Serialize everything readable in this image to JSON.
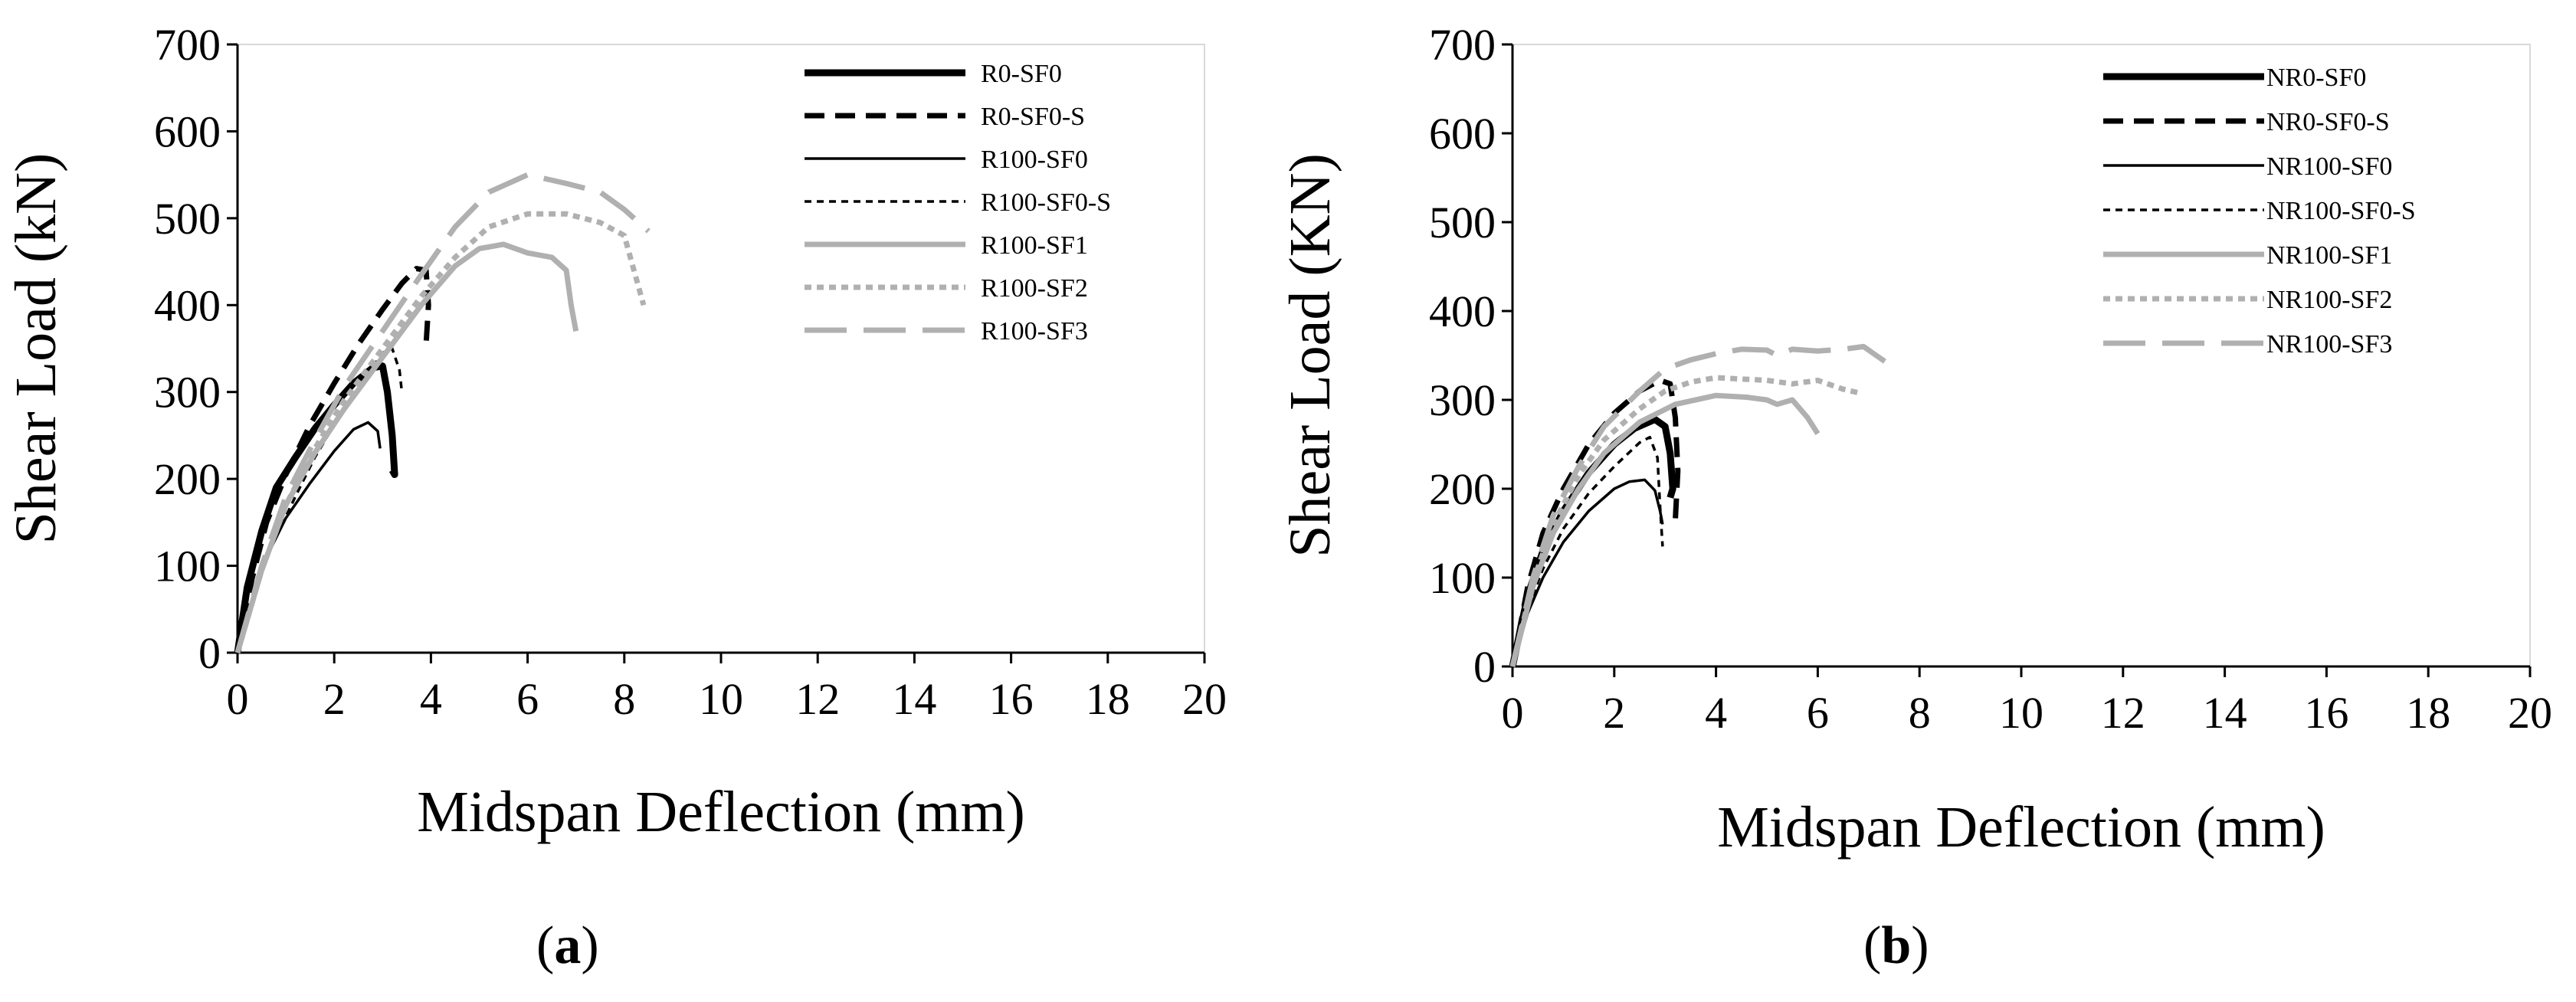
{
  "chart_data": [
    {
      "type": "line",
      "panel_label": "a",
      "xlabel": "Midspan Deflection (mm)",
      "ylabel": "Shear Load (kN)",
      "xlim": [
        0,
        20
      ],
      "ylim": [
        0,
        700
      ],
      "xticks": [
        0,
        2,
        4,
        6,
        8,
        10,
        12,
        14,
        16,
        18,
        20
      ],
      "yticks": [
        0,
        100,
        200,
        300,
        400,
        500,
        600,
        700
      ],
      "legend_position": "top-right",
      "grid": false,
      "series": [
        {
          "name": "R0-SF0",
          "color": "#000000",
          "dash": "solid",
          "weight": "thick",
          "x": [
            0,
            0.2,
            0.5,
            0.8,
            1.2,
            1.6,
            2.0,
            2.4,
            2.8,
            3.0,
            3.1,
            3.2,
            3.25,
            3.2
          ],
          "y": [
            0,
            75,
            140,
            190,
            225,
            258,
            285,
            310,
            328,
            330,
            300,
            250,
            205,
            210
          ]
        },
        {
          "name": "R0-SF0-S",
          "color": "#000000",
          "dash": "dash",
          "weight": "thick",
          "x": [
            0,
            0.3,
            0.6,
            1.0,
            1.5,
            2.0,
            2.5,
            3.0,
            3.4,
            3.7,
            3.9,
            3.95,
            3.9
          ],
          "y": [
            0,
            85,
            150,
            205,
            262,
            310,
            355,
            395,
            425,
            442,
            440,
            400,
            355
          ]
        },
        {
          "name": "R100-SF0",
          "color": "#000000",
          "dash": "solid",
          "weight": "thin",
          "x": [
            0,
            0.3,
            0.6,
            1.0,
            1.5,
            2.0,
            2.4,
            2.7,
            2.9,
            2.95
          ],
          "y": [
            0,
            60,
            110,
            155,
            195,
            232,
            257,
            265,
            255,
            235
          ]
        },
        {
          "name": "R100-SF0-S",
          "color": "#000000",
          "dash": "shortdash",
          "weight": "thin",
          "x": [
            0,
            0.3,
            0.6,
            0.9,
            1.2,
            1.6,
            2.0,
            2.5,
            3.0,
            3.2,
            3.35,
            3.4
          ],
          "y": [
            0,
            60,
            110,
            145,
            180,
            225,
            262,
            305,
            345,
            350,
            325,
            300
          ]
        },
        {
          "name": "R100-SF1",
          "color": "#b0b0b0",
          "dash": "solid",
          "weight": "thick",
          "x": [
            0,
            0.5,
            1.0,
            1.6,
            2.2,
            3.0,
            3.8,
            4.5,
            5.0,
            5.5,
            6.0,
            6.5,
            6.8,
            6.9,
            7.0
          ],
          "y": [
            0,
            95,
            170,
            230,
            280,
            340,
            400,
            445,
            465,
            470,
            460,
            455,
            440,
            400,
            370
          ]
        },
        {
          "name": "R100-SF2",
          "color": "#b0b0b0",
          "dash": "shortdash",
          "weight": "thick",
          "x": [
            0,
            0.5,
            1.0,
            1.6,
            2.2,
            3.0,
            3.8,
            4.5,
            5.2,
            6.0,
            6.8,
            7.5,
            8.0,
            8.2,
            8.4
          ],
          "y": [
            0,
            95,
            170,
            235,
            290,
            350,
            410,
            455,
            490,
            505,
            505,
            495,
            480,
            440,
            400
          ]
        },
        {
          "name": "R100-SF3",
          "color": "#b0b0b0",
          "dash": "longdash",
          "weight": "thick",
          "x": [
            0,
            0.5,
            1.0,
            1.6,
            2.2,
            3.0,
            3.8,
            4.5,
            5.2,
            6.0,
            6.8,
            7.5,
            8.0,
            8.5
          ],
          "y": [
            0,
            100,
            180,
            245,
            305,
            370,
            435,
            490,
            530,
            550,
            540,
            530,
            510,
            485
          ]
        }
      ]
    },
    {
      "type": "line",
      "panel_label": "b",
      "xlabel": "Midspan Deflection (mm)",
      "ylabel": "Shear Load (KN)",
      "xlim": [
        0,
        20
      ],
      "ylim": [
        0,
        700
      ],
      "xticks": [
        0,
        2,
        4,
        6,
        8,
        10,
        12,
        14,
        16,
        18,
        20
      ],
      "yticks": [
        0,
        100,
        200,
        300,
        400,
        500,
        600,
        700
      ],
      "legend_position": "top-right",
      "grid": false,
      "series": [
        {
          "name": "NR0-SF0",
          "color": "#000000",
          "dash": "solid",
          "weight": "thick",
          "x": [
            0,
            0.3,
            0.6,
            1.0,
            1.5,
            2.0,
            2.4,
            2.8,
            3.0,
            3.1,
            3.15,
            3.1
          ],
          "y": [
            0,
            80,
            130,
            175,
            218,
            250,
            268,
            278,
            270,
            240,
            200,
            190
          ]
        },
        {
          "name": "NR0-SF0-S",
          "color": "#000000",
          "dash": "dash",
          "weight": "thick",
          "x": [
            0,
            0.3,
            0.6,
            1.0,
            1.5,
            2.0,
            2.5,
            2.9,
            3.1,
            3.2,
            3.25,
            3.2
          ],
          "y": [
            0,
            90,
            150,
            200,
            250,
            285,
            310,
            322,
            318,
            280,
            220,
            165
          ]
        },
        {
          "name": "NR100-SF0",
          "color": "#000000",
          "dash": "solid",
          "weight": "thin",
          "x": [
            0,
            0.3,
            0.6,
            1.0,
            1.5,
            2.0,
            2.3,
            2.6,
            2.8,
            2.9,
            2.95
          ],
          "y": [
            0,
            60,
            100,
            140,
            175,
            200,
            208,
            210,
            198,
            175,
            160
          ]
        },
        {
          "name": "NR100-SF0-S",
          "color": "#000000",
          "dash": "shortdash",
          "weight": "thin",
          "x": [
            0,
            0.3,
            0.6,
            1.0,
            1.5,
            2.0,
            2.5,
            2.7,
            2.85,
            2.9,
            2.95
          ],
          "y": [
            0,
            65,
            110,
            155,
            195,
            225,
            252,
            258,
            235,
            180,
            135
          ]
        },
        {
          "name": "NR100-SF1",
          "color": "#b0b0b0",
          "dash": "solid",
          "weight": "thick",
          "x": [
            0,
            0.4,
            0.8,
            1.3,
            1.8,
            2.5,
            3.2,
            4.0,
            4.6,
            5.0,
            5.2,
            5.5,
            5.8,
            6.0
          ],
          "y": [
            0,
            90,
            150,
            200,
            240,
            275,
            295,
            305,
            303,
            300,
            295,
            300,
            280,
            262
          ]
        },
        {
          "name": "NR100-SF2",
          "color": "#b0b0b0",
          "dash": "shortdash",
          "weight": "thick",
          "x": [
            0,
            0.4,
            0.8,
            1.3,
            1.8,
            2.5,
            3.0,
            3.5,
            4.0,
            5.0,
            5.5,
            6.0,
            6.5,
            6.8
          ],
          "y": [
            0,
            95,
            160,
            215,
            255,
            290,
            310,
            320,
            325,
            322,
            318,
            322,
            312,
            308
          ]
        },
        {
          "name": "NR100-SF3",
          "color": "#b0b0b0",
          "dash": "longdash",
          "weight": "thick",
          "x": [
            0,
            0.4,
            0.8,
            1.3,
            1.8,
            2.5,
            3.0,
            3.5,
            4.0,
            4.5,
            5.0,
            5.2,
            5.5,
            6.0,
            6.5,
            6.9,
            7.1,
            7.5
          ],
          "y": [
            0,
            100,
            170,
            225,
            270,
            310,
            335,
            345,
            352,
            357,
            356,
            350,
            357,
            355,
            357,
            360,
            352,
            336
          ]
        }
      ]
    }
  ]
}
